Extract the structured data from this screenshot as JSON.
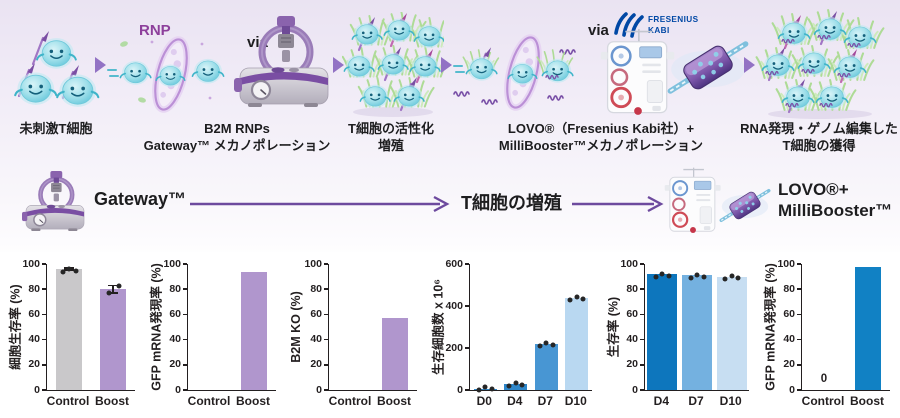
{
  "hero": {
    "rnp_label": "RNP",
    "via_label_1": "via",
    "via_label_2": "via",
    "fresenius_logo": {
      "line1": "FRESENIUS",
      "line2": "KABI"
    },
    "steps": [
      {
        "lines": [
          "未刺激T細胞"
        ]
      },
      {
        "lines": [
          "B2M RNPs",
          "Gateway™ メカノポレーション"
        ]
      },
      {
        "lines": [
          "T細胞の活性化",
          "増殖"
        ]
      },
      {
        "lines": [
          "LOVO®（Fresenius Kabi社）+",
          "MilliBooster™メカノポレーション"
        ]
      },
      {
        "lines": [
          "RNA発現・ゲノム編集した",
          "T細胞の獲得"
        ]
      }
    ]
  },
  "timeline": {
    "start_label": "Gateway™",
    "middle_label": "T細胞の増殖",
    "end_line1": "LOVO®+",
    "end_line2": "MilliBooster™"
  },
  "colors": {
    "purple_bar": "#b096cd",
    "gray_bar": "#c9c8ca",
    "accent_purple": "#7a4ea3",
    "arrow_purple": "#6d4a9e",
    "fresenius_blue": "#0048a5"
  },
  "chart_data": [
    {
      "type": "bar",
      "ylabel": "細胞生存率 (%)",
      "categories": [
        "Control",
        "Boost"
      ],
      "values": [
        96,
        80
      ],
      "bar_colors": [
        "#c9c8ca",
        "#b096cd"
      ],
      "ylim": [
        0,
        100
      ],
      "yticks": [
        0,
        20,
        40,
        60,
        80,
        100
      ],
      "error": [
        1.5,
        3.5
      ],
      "dots": [
        3,
        2
      ]
    },
    {
      "type": "bar",
      "ylabel": "GFP mRNA発現率 (%)",
      "categories": [
        "Control",
        "Boost"
      ],
      "values": [
        0,
        94
      ],
      "bar_colors": [
        "#c9c8ca",
        "#b096cd"
      ],
      "ylim": [
        0,
        100
      ],
      "yticks": [
        0,
        20,
        40,
        60,
        80,
        100
      ]
    },
    {
      "type": "bar",
      "ylabel": "B2M KO (%)",
      "categories": [
        "Control",
        "Boost"
      ],
      "values": [
        0,
        57
      ],
      "bar_colors": [
        "#c9c8ca",
        "#b096cd"
      ],
      "ylim": [
        0,
        100
      ],
      "yticks": [
        0,
        20,
        40,
        60,
        80,
        100
      ]
    },
    {
      "type": "bar",
      "ylabel": "生存細胞数 x 10⁶",
      "categories": [
        "D0",
        "D4",
        "D7",
        "D10"
      ],
      "values": [
        5,
        30,
        220,
        440
      ],
      "bar_colors": [
        "#2e86c9",
        "#2e86c9",
        "#4896d3",
        "#b9d8f1"
      ],
      "ylim": [
        0,
        600
      ],
      "yticks": [
        0,
        200,
        400,
        600
      ],
      "dots": [
        3,
        3,
        3,
        3
      ]
    },
    {
      "type": "bar",
      "ylabel": "生存率 (%)",
      "categories": [
        "D4",
        "D7",
        "D10"
      ],
      "values": [
        92,
        91,
        90
      ],
      "bar_colors": [
        "#0d76bd",
        "#74b1e0",
        "#c7def2"
      ],
      "ylim": [
        0,
        100
      ],
      "yticks": [
        0,
        20,
        40,
        60,
        80,
        100
      ],
      "dots": [
        3,
        3,
        3
      ]
    },
    {
      "type": "bar",
      "ylabel": "GFP mRNA発現率 (%)",
      "categories": [
        "Control",
        "Boost"
      ],
      "values": [
        0,
        98
      ],
      "bar_colors": [
        "#c9c8ca",
        "#1181c4"
      ],
      "ylim": [
        0,
        100
      ],
      "yticks": [
        0,
        20,
        40,
        60,
        80,
        100
      ],
      "annotations": [
        {
          "index": 0,
          "text": "0"
        }
      ]
    }
  ]
}
